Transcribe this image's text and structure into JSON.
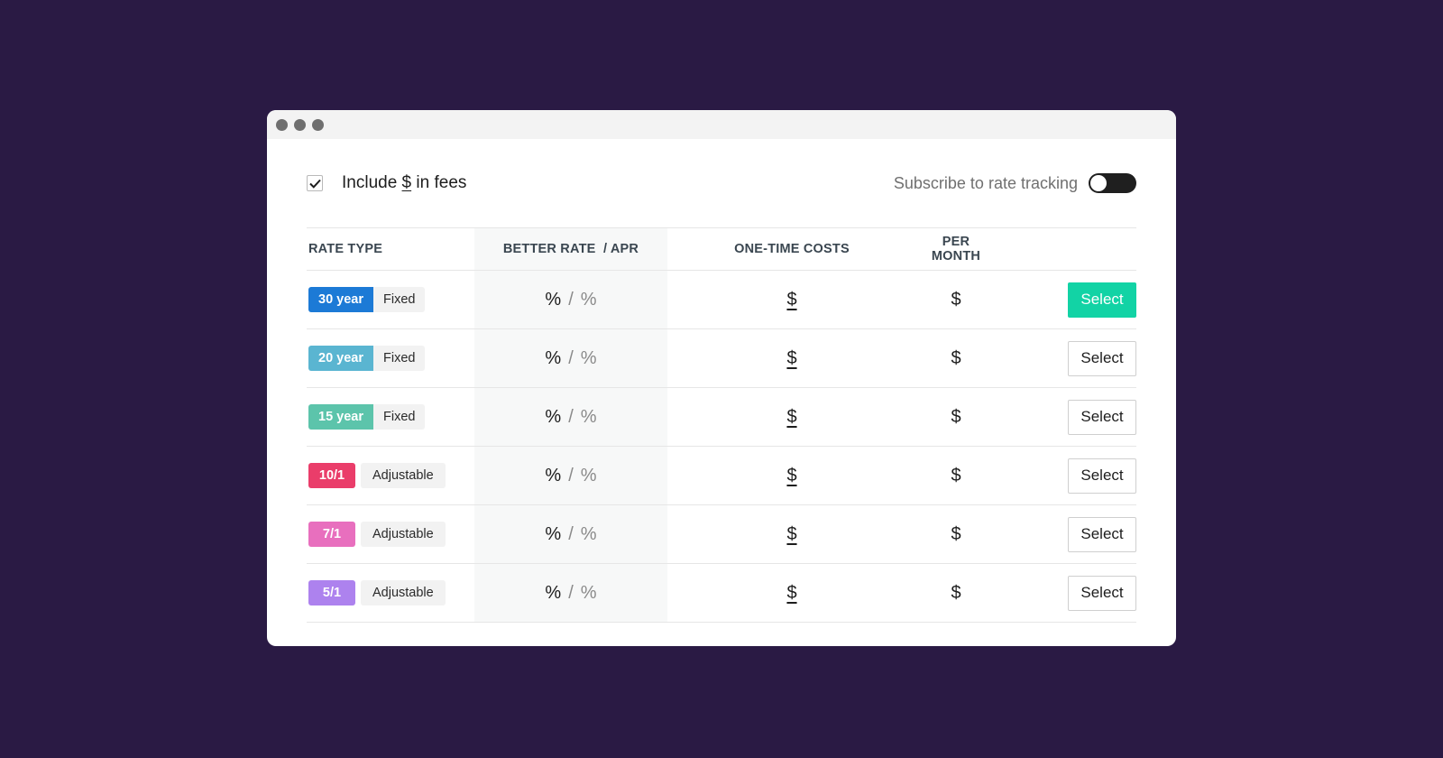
{
  "window": {
    "controls": [
      "close",
      "minimize",
      "zoom"
    ]
  },
  "fees": {
    "checked": true,
    "prefix": "Include ",
    "symbol": "$",
    "suffix": " in fees"
  },
  "tracking": {
    "label": "Subscribe to rate tracking",
    "enabled": false
  },
  "table": {
    "headers": {
      "rate_type": "RATE TYPE",
      "better_rate": "BETTER RATE",
      "apr": "/ APR",
      "one_time": "ONE-TIME COSTS",
      "per_month": "PER MONTH"
    },
    "rows": [
      {
        "term": "30 year",
        "type": "Fixed",
        "color": "#1c7ad6",
        "rate": "%",
        "sep": "/",
        "apr": "%",
        "one_time": "$",
        "per_month": "$",
        "select_label": "Select",
        "primary": true
      },
      {
        "term": "20 year",
        "type": "Fixed",
        "color": "#5ab5d1",
        "rate": "%",
        "sep": "/",
        "apr": "%",
        "one_time": "$",
        "per_month": "$",
        "select_label": "Select",
        "primary": false
      },
      {
        "term": "15 year",
        "type": "Fixed",
        "color": "#5cc4ab",
        "rate": "%",
        "sep": "/",
        "apr": "%",
        "one_time": "$",
        "per_month": "$",
        "select_label": "Select",
        "primary": false
      },
      {
        "term": "10/1",
        "type": "Adjustable",
        "color": "#ea3d6a",
        "rate": "%",
        "sep": "/",
        "apr": "%",
        "one_time": "$",
        "per_month": "$",
        "select_label": "Select",
        "primary": false
      },
      {
        "term": "7/1",
        "type": "Adjustable",
        "color": "#e86fbe",
        "rate": "%",
        "sep": "/",
        "apr": "%",
        "one_time": "$",
        "per_month": "$",
        "select_label": "Select",
        "primary": false
      },
      {
        "term": "5/1",
        "type": "Adjustable",
        "color": "#ad82ee",
        "rate": "%",
        "sep": "/",
        "apr": "%",
        "one_time": "$",
        "per_month": "$",
        "select_label": "Select",
        "primary": false
      }
    ]
  }
}
